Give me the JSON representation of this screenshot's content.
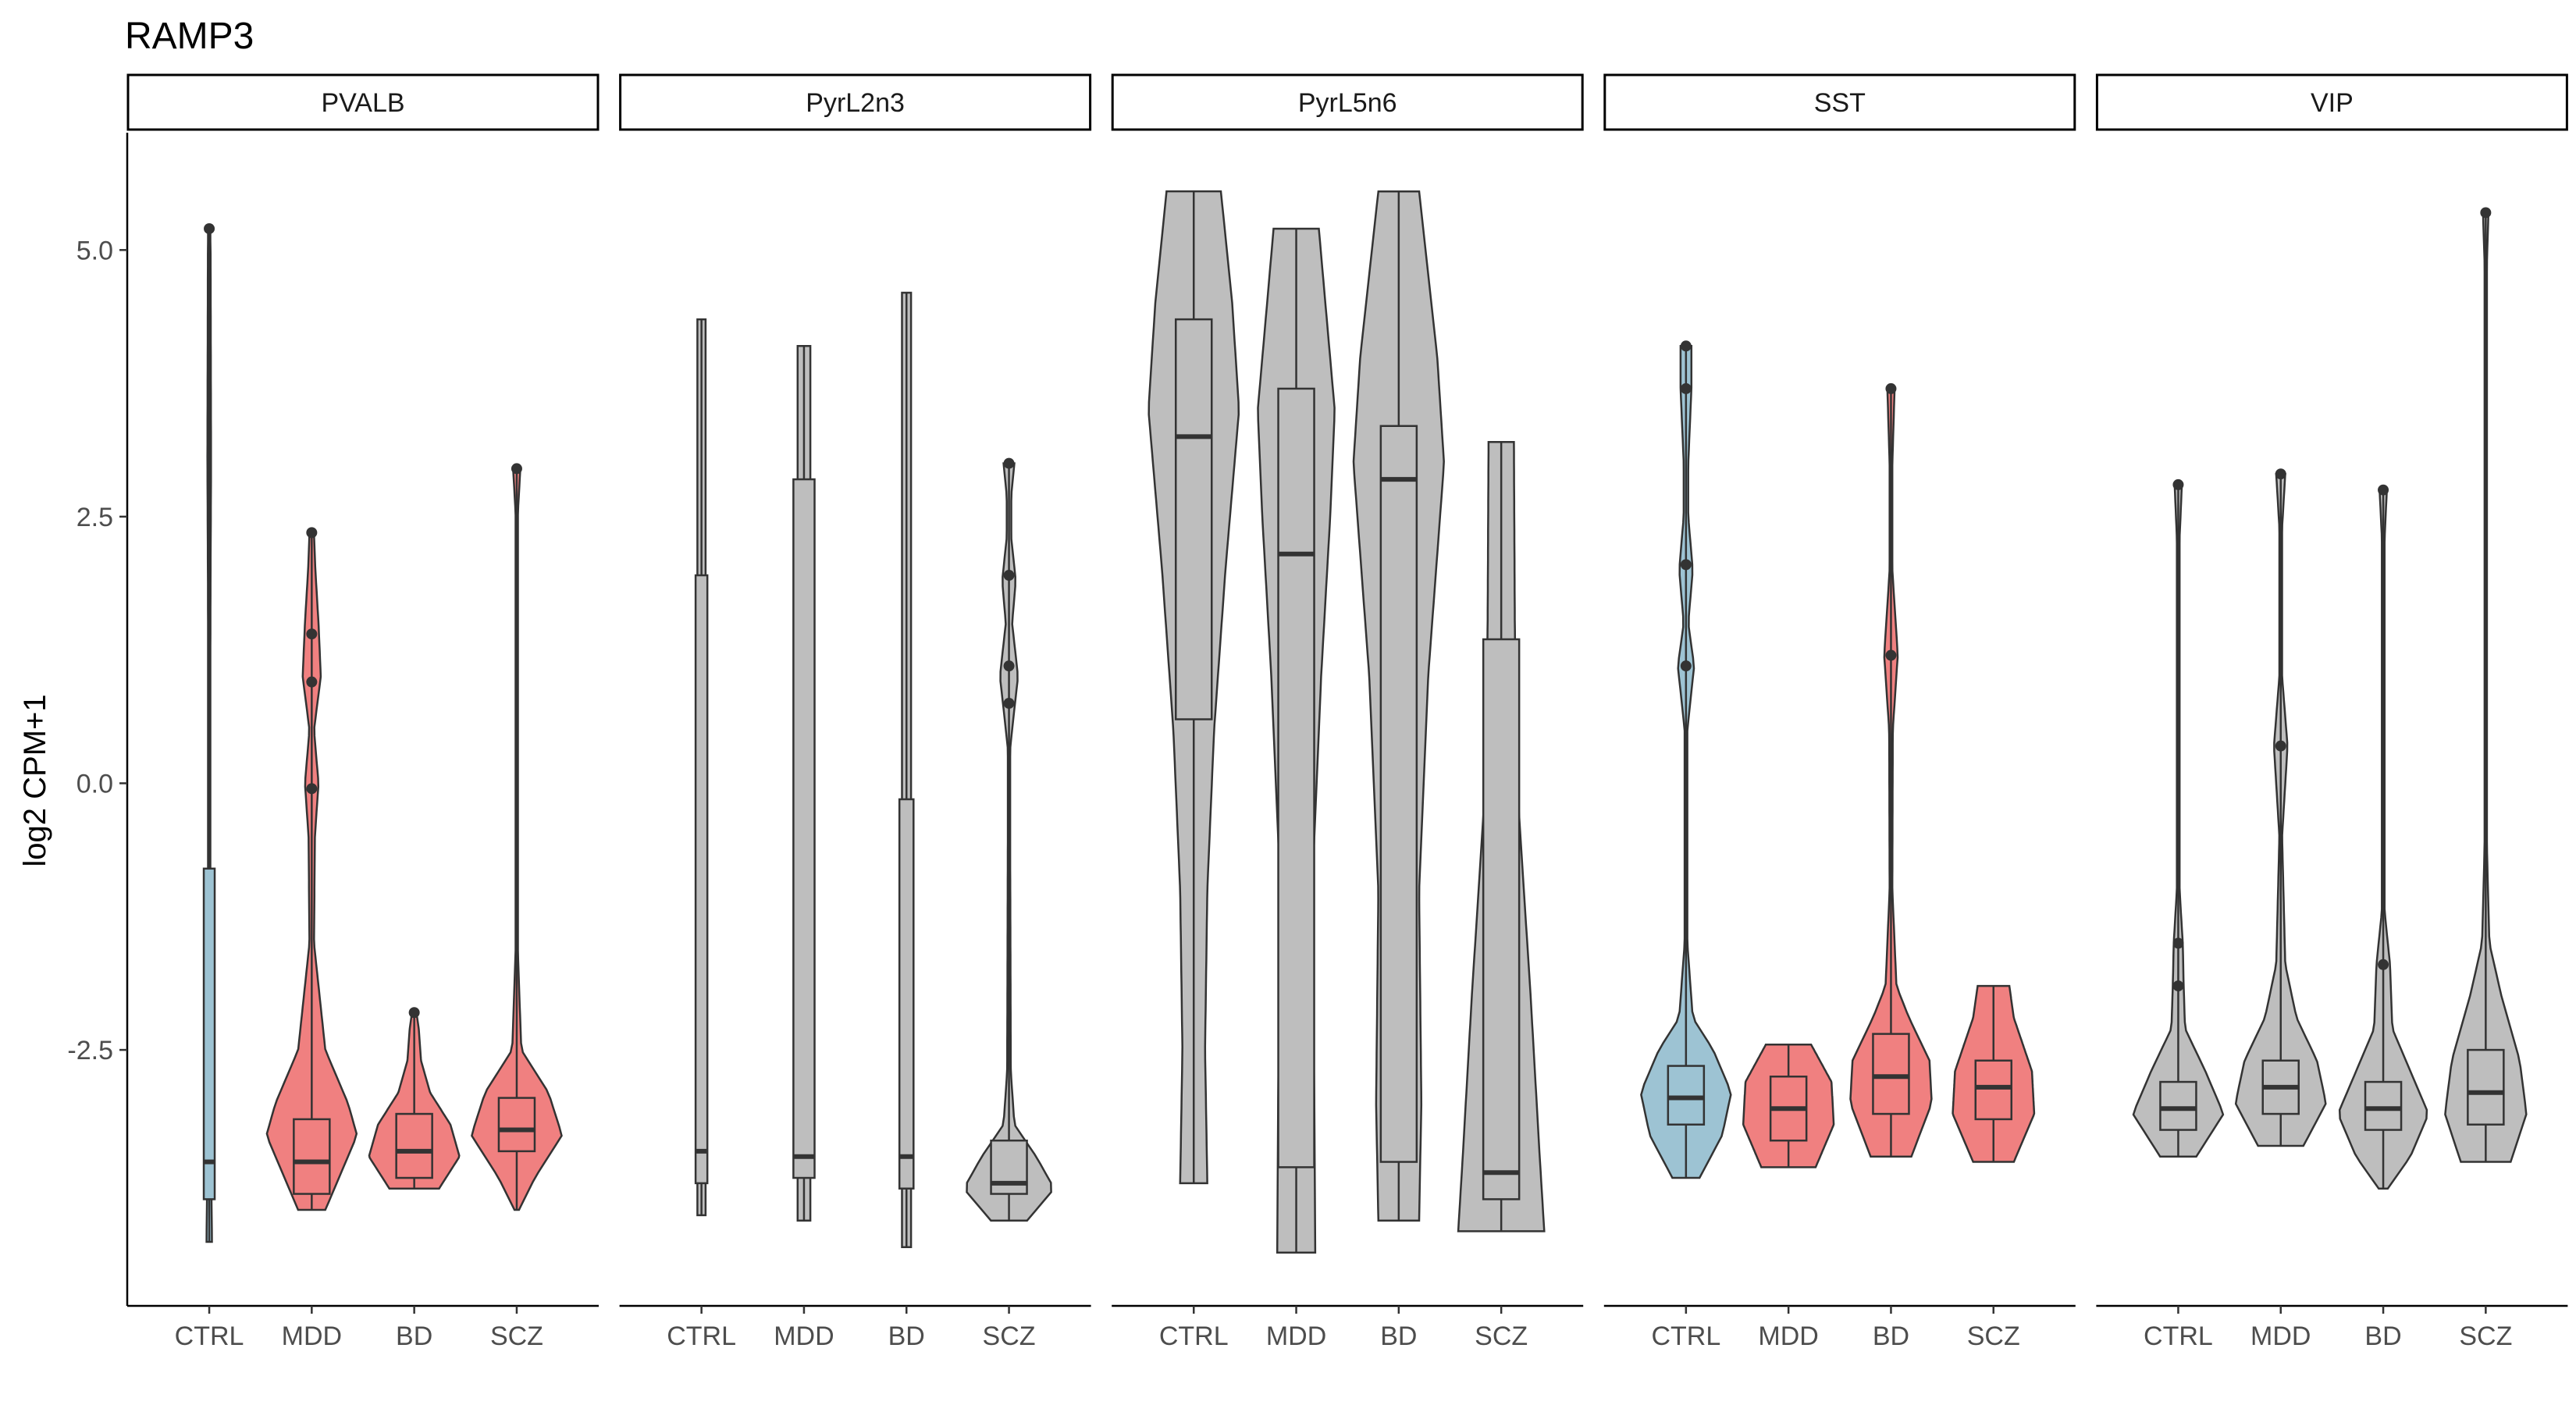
{
  "chart_data": {
    "type": "violin",
    "title": "RAMP3",
    "xlabel": "",
    "ylabel": "log2 CPM+1",
    "ylim": [
      -4.9,
      6.1
    ],
    "yticks": [
      -2.5,
      0.0,
      2.5,
      5.0
    ],
    "ytick_labels": [
      "-2.5",
      "0.0",
      "2.5",
      "5.0"
    ],
    "categories": [
      "CTRL",
      "MDD",
      "BD",
      "SCZ"
    ],
    "grid": false,
    "legend": "none",
    "colors": {
      "blue": "#9dc3d3",
      "red": "#f08080",
      "grey": "#bebebe",
      "outline": "#333333"
    },
    "panels": [
      {
        "name": "PVALB",
        "groups": [
          {
            "label": "CTRL",
            "color": "blue",
            "min": -4.3,
            "q1": -3.9,
            "median": -3.55,
            "q3": -0.8,
            "max": 5.2,
            "width": 0.06,
            "outliers": [
              5.2
            ],
            "profile": [
              [
                -4.3,
                0.06
              ],
              [
                -3.9,
                0.05
              ],
              [
                -1.0,
                0.02
              ],
              [
                0.5,
                0.02
              ],
              [
                2.0,
                0.03
              ],
              [
                3.0,
                0.04
              ],
              [
                4.0,
                0.035
              ],
              [
                5.0,
                0.03
              ],
              [
                5.2,
                0.02
              ]
            ]
          },
          {
            "label": "MDD",
            "color": "red",
            "min": -4.0,
            "q1": -3.85,
            "median": -3.55,
            "q3": -3.15,
            "max": 2.35,
            "width": 0.28,
            "outliers": [
              2.35,
              1.4,
              0.95,
              -0.05
            ],
            "profile": [
              [
                -4.0,
                0.3
              ],
              [
                -3.7,
                0.6
              ],
              [
                -3.3,
                1.0
              ],
              [
                -3.0,
                0.8
              ],
              [
                -2.5,
                0.3
              ],
              [
                -1.5,
                0.05
              ],
              [
                -0.5,
                0.07
              ],
              [
                0.0,
                0.15
              ],
              [
                0.5,
                0.05
              ],
              [
                1.0,
                0.2
              ],
              [
                1.5,
                0.15
              ],
              [
                2.0,
                0.08
              ],
              [
                2.35,
                0.05
              ]
            ]
          },
          {
            "label": "BD",
            "color": "red",
            "min": -3.8,
            "q1": -3.7,
            "median": -3.45,
            "q3": -3.1,
            "max": -2.15,
            "width": 0.45,
            "outliers": [
              -2.15
            ],
            "profile": [
              [
                -3.8,
                0.55
              ],
              [
                -3.5,
                1.0
              ],
              [
                -3.2,
                0.8
              ],
              [
                -2.9,
                0.35
              ],
              [
                -2.6,
                0.15
              ],
              [
                -2.3,
                0.1
              ],
              [
                -2.15,
                0.05
              ]
            ]
          },
          {
            "label": "SCZ",
            "color": "red",
            "min": -4.0,
            "q1": -3.45,
            "median": -3.25,
            "q3": -2.95,
            "max": 2.95,
            "width": 0.45,
            "outliers": [
              2.95
            ],
            "profile": [
              [
                -4.0,
                0.05
              ],
              [
                -3.7,
                0.4
              ],
              [
                -3.3,
                1.0
              ],
              [
                -2.9,
                0.7
              ],
              [
                -2.5,
                0.1
              ],
              [
                -1.5,
                0.02
              ],
              [
                2.5,
                0.02
              ],
              [
                2.95,
                0.08
              ]
            ]
          }
        ]
      },
      {
        "name": "PyrL2n3",
        "groups": [
          {
            "label": "CTRL",
            "color": "grey",
            "min": -4.05,
            "q1": -3.75,
            "median": -3.45,
            "q3": 1.95,
            "max": 4.35,
            "width": 0.1,
            "outliers": [],
            "profile": [
              [
                -4.05,
                0.09
              ],
              [
                4.35,
                0.09
              ]
            ]
          },
          {
            "label": "MDD",
            "color": "grey",
            "min": -4.1,
            "q1": -3.7,
            "median": -3.5,
            "q3": 2.85,
            "max": 4.1,
            "width": 0.18,
            "outliers": [],
            "profile": [
              [
                -4.1,
                0.14
              ],
              [
                4.1,
                0.14
              ]
            ]
          },
          {
            "label": "BD",
            "color": "grey",
            "min": -4.35,
            "q1": -3.8,
            "median": -3.5,
            "q3": -0.15,
            "max": 4.6,
            "width": 0.12,
            "outliers": [],
            "profile": [
              [
                -4.35,
                0.1
              ],
              [
                4.6,
                0.1
              ]
            ]
          },
          {
            "label": "SCZ",
            "color": "grey",
            "min": -4.1,
            "q1": -3.85,
            "median": -3.75,
            "q3": -3.35,
            "max": 3.0,
            "width": 0.45,
            "outliers": [
              3.0,
              1.95,
              1.1,
              0.75
            ],
            "profile": [
              [
                -4.1,
                0.4
              ],
              [
                -3.8,
                1.0
              ],
              [
                -3.5,
                0.6
              ],
              [
                -3.2,
                0.12
              ],
              [
                -2.7,
                0.04
              ],
              [
                0.3,
                0.02
              ],
              [
                0.7,
                0.12
              ],
              [
                1.0,
                0.2
              ],
              [
                1.5,
                0.07
              ],
              [
                1.9,
                0.15
              ],
              [
                2.3,
                0.05
              ],
              [
                2.7,
                0.05
              ],
              [
                3.0,
                0.12
              ]
            ]
          }
        ]
      },
      {
        "name": "PyrL5n6",
        "groups": [
          {
            "label": "CTRL",
            "color": "grey",
            "min": -3.75,
            "q1": 0.6,
            "median": 3.25,
            "q3": 4.35,
            "max": 5.55,
            "width": 0.5,
            "outliers": [],
            "profile": [
              [
                -3.75,
                0.3
              ],
              [
                -2.5,
                0.25
              ],
              [
                -1.0,
                0.3
              ],
              [
                0.5,
                0.45
              ],
              [
                2.0,
                0.7
              ],
              [
                3.5,
                1.0
              ],
              [
                4.5,
                0.85
              ],
              [
                5.55,
                0.6
              ]
            ]
          },
          {
            "label": "MDD",
            "color": "grey",
            "min": -4.4,
            "q1": -3.6,
            "median": 2.15,
            "q3": 3.7,
            "max": 5.2,
            "width": 0.5,
            "outliers": [],
            "profile": [
              [
                -4.4,
                0.42
              ],
              [
                -3.0,
                0.4
              ],
              [
                -1.0,
                0.35
              ],
              [
                1.0,
                0.55
              ],
              [
                2.5,
                0.75
              ],
              [
                3.5,
                0.85
              ],
              [
                5.2,
                0.5
              ]
            ]
          },
          {
            "label": "BD",
            "color": "grey",
            "min": -4.1,
            "q1": -3.55,
            "median": 2.85,
            "q3": 3.35,
            "max": 5.55,
            "width": 0.5,
            "outliers": [],
            "profile": [
              [
                -4.1,
                0.45
              ],
              [
                -3.0,
                0.5
              ],
              [
                -1.0,
                0.45
              ],
              [
                1.0,
                0.65
              ],
              [
                3.0,
                1.0
              ],
              [
                4.0,
                0.85
              ],
              [
                5.55,
                0.45
              ]
            ]
          },
          {
            "label": "SCZ",
            "color": "grey",
            "min": -4.2,
            "q1": -3.9,
            "median": -3.65,
            "q3": 1.35,
            "max": 3.2,
            "width": 0.5,
            "outliers": [],
            "profile": [
              [
                -4.2,
                0.95
              ],
              [
                -3.5,
                0.85
              ],
              [
                -2.0,
                0.65
              ],
              [
                0.0,
                0.35
              ],
              [
                1.5,
                0.3
              ],
              [
                3.2,
                0.28
              ]
            ]
          }
        ]
      },
      {
        "name": "SST",
        "groups": [
          {
            "label": "CTRL",
            "color": "blue",
            "min": -3.7,
            "q1": -3.2,
            "median": -2.95,
            "q3": -2.65,
            "max": 4.1,
            "width": 0.45,
            "outliers": [
              4.1,
              3.7,
              2.05,
              1.1
            ],
            "profile": [
              [
                -3.7,
                0.3
              ],
              [
                -3.3,
                0.8
              ],
              [
                -2.9,
                1.0
              ],
              [
                -2.5,
                0.6
              ],
              [
                -2.2,
                0.15
              ],
              [
                -1.5,
                0.03
              ],
              [
                0.5,
                0.03
              ],
              [
                1.1,
                0.18
              ],
              [
                1.5,
                0.05
              ],
              [
                2.0,
                0.15
              ],
              [
                2.5,
                0.05
              ],
              [
                3.0,
                0.05
              ],
              [
                3.7,
                0.12
              ],
              [
                4.1,
                0.12
              ]
            ]
          },
          {
            "label": "MDD",
            "color": "red",
            "min": -3.6,
            "q1": -3.35,
            "median": -3.05,
            "q3": -2.75,
            "max": -2.45,
            "width": 0.45,
            "outliers": [],
            "profile": [
              [
                -3.6,
                0.6
              ],
              [
                -3.2,
                1.0
              ],
              [
                -2.8,
                0.95
              ],
              [
                -2.45,
                0.5
              ]
            ]
          },
          {
            "label": "BD",
            "color": "red",
            "min": -3.5,
            "q1": -3.1,
            "median": -2.75,
            "q3": -2.35,
            "max": 3.7,
            "width": 0.45,
            "outliers": [
              3.7,
              1.2
            ],
            "profile": [
              [
                -3.5,
                0.45
              ],
              [
                -3.0,
                0.9
              ],
              [
                -2.6,
                0.85
              ],
              [
                -2.2,
                0.4
              ],
              [
                -1.9,
                0.12
              ],
              [
                -1.0,
                0.03
              ],
              [
                0.5,
                0.04
              ],
              [
                1.2,
                0.15
              ],
              [
                2.0,
                0.03
              ],
              [
                3.0,
                0.03
              ],
              [
                3.7,
                0.08
              ]
            ]
          },
          {
            "label": "SCZ",
            "color": "red",
            "min": -3.55,
            "q1": -3.15,
            "median": -2.85,
            "q3": -2.6,
            "max": -1.9,
            "width": 0.45,
            "outliers": [],
            "profile": [
              [
                -3.55,
                0.45
              ],
              [
                -3.1,
                0.9
              ],
              [
                -2.7,
                0.85
              ],
              [
                -2.2,
                0.45
              ],
              [
                -1.9,
                0.35
              ]
            ]
          }
        ]
      },
      {
        "name": "VIP",
        "groups": [
          {
            "label": "CTRL",
            "color": "grey",
            "min": -3.5,
            "q1": -3.25,
            "median": -3.05,
            "q3": -2.8,
            "max": 2.8,
            "width": 0.45,
            "outliers": [
              2.8,
              -1.5,
              -1.9
            ],
            "profile": [
              [
                -3.5,
                0.4
              ],
              [
                -3.1,
                1.0
              ],
              [
                -2.7,
                0.6
              ],
              [
                -2.3,
                0.15
              ],
              [
                -1.9,
                0.12
              ],
              [
                -1.5,
                0.1
              ],
              [
                -1.0,
                0.03
              ],
              [
                2.3,
                0.03
              ],
              [
                2.8,
                0.08
              ]
            ]
          },
          {
            "label": "MDD",
            "color": "grey",
            "min": -3.4,
            "q1": -3.1,
            "median": -2.85,
            "q3": -2.6,
            "max": 2.9,
            "width": 0.45,
            "outliers": [
              2.9,
              0.35
            ],
            "profile": [
              [
                -3.4,
                0.5
              ],
              [
                -3.0,
                1.0
              ],
              [
                -2.6,
                0.8
              ],
              [
                -2.2,
                0.35
              ],
              [
                -1.7,
                0.1
              ],
              [
                -0.5,
                0.03
              ],
              [
                0.35,
                0.15
              ],
              [
                1.0,
                0.03
              ],
              [
                2.4,
                0.03
              ],
              [
                2.9,
                0.1
              ]
            ]
          },
          {
            "label": "BD",
            "color": "grey",
            "min": -3.8,
            "q1": -3.25,
            "median": -3.05,
            "q3": -2.8,
            "max": 2.75,
            "width": 0.45,
            "outliers": [
              2.75,
              -1.7
            ],
            "profile": [
              [
                -3.8,
                0.1
              ],
              [
                -3.5,
                0.6
              ],
              [
                -3.1,
                1.0
              ],
              [
                -2.7,
                0.6
              ],
              [
                -2.3,
                0.2
              ],
              [
                -1.7,
                0.15
              ],
              [
                -1.2,
                0.03
              ],
              [
                2.3,
                0.03
              ],
              [
                2.75,
                0.08
              ]
            ]
          },
          {
            "label": "SCZ",
            "color": "grey",
            "min": -3.55,
            "q1": -3.2,
            "median": -2.9,
            "q3": -2.5,
            "max": 5.35,
            "width": 0.45,
            "outliers": [
              5.35
            ],
            "profile": [
              [
                -3.55,
                0.55
              ],
              [
                -3.1,
                0.9
              ],
              [
                -2.6,
                0.75
              ],
              [
                -2.0,
                0.35
              ],
              [
                -1.5,
                0.08
              ],
              [
                -0.5,
                0.02
              ],
              [
                4.8,
                0.02
              ],
              [
                5.35,
                0.06
              ]
            ]
          }
        ]
      }
    ]
  }
}
